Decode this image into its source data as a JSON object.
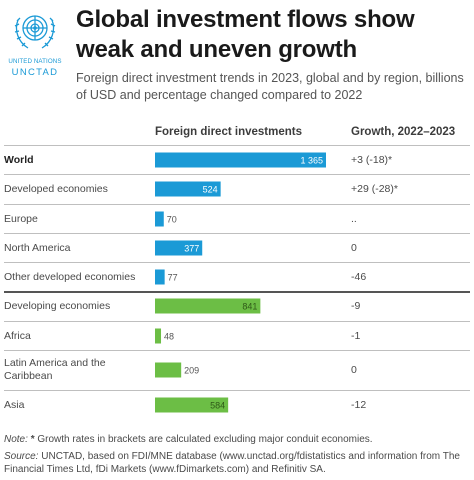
{
  "header": {
    "org_line1": "UNITED NATIONS",
    "org_line2": "UNCTAD",
    "title": "Global investment flows show weak and uneven growth",
    "subtitle": "Foreign direct investment trends in 2023, global and by region, billions of USD and percentage changed compared to 2022"
  },
  "colors": {
    "world": "#1b9ad6",
    "developed": "#1b9ad6",
    "developing": "#6cbe45",
    "brand": "#1b9ad6"
  },
  "chart_data": {
    "type": "bar",
    "orientation": "horizontal",
    "column_headers": [
      "Foreign direct investments",
      "Growth, 2022–2023"
    ],
    "categories": [
      "World",
      "Developed economies",
      "Europe",
      "North America",
      "Other developed economies",
      "Developing economies",
      "Africa",
      "Latin America and the Caribbean",
      "Asia"
    ],
    "values": [
      1365,
      524,
      70,
      377,
      77,
      841,
      48,
      209,
      584
    ],
    "value_labels": [
      "1 365",
      "524",
      "70",
      "377",
      "77",
      "841",
      "48",
      "209",
      "584"
    ],
    "growth": [
      "+3 (-18)*",
      "+29 (-28)*",
      "..",
      "0",
      "-46",
      "-9",
      "-1",
      "0",
      "-12"
    ],
    "groups": [
      "world",
      "developed",
      "developed",
      "developed",
      "developed",
      "developing",
      "developing",
      "developing",
      "developing"
    ],
    "xlim": [
      0,
      1365
    ]
  },
  "footer": {
    "note_label": "Note:",
    "note_star": "*",
    "note_text": "Growth rates in brackets are calculated excluding major conduit economies.",
    "source_label": "Source:",
    "source_text": "UNCTAD, based on FDI/MNE database (www.unctad.org/fdistatistics and information from The Financial Times Ltd, fDi Markets (www.fDimarkets.com) and Refinitiv SA."
  }
}
